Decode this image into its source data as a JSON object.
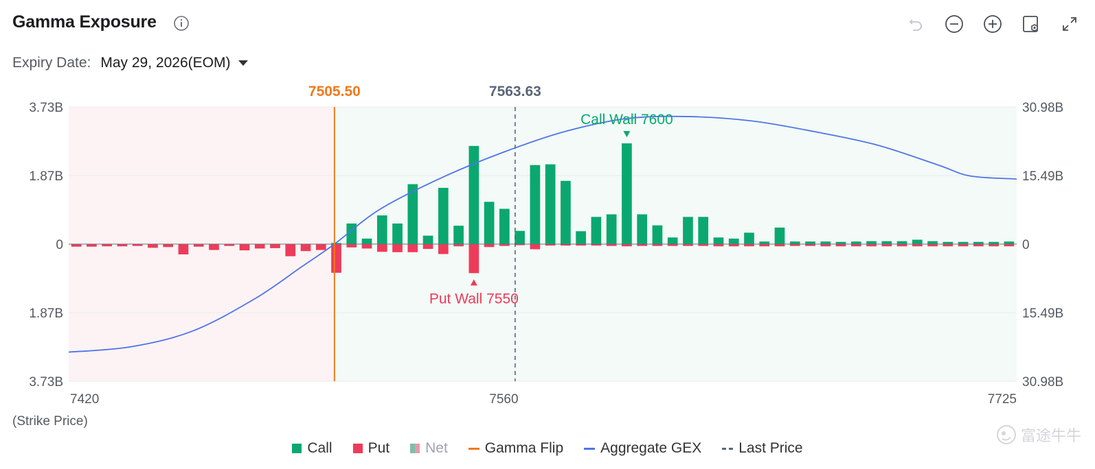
{
  "header": {
    "title": "Gamma Exposure",
    "expiry_label": "Expiry Date:",
    "expiry_value": "May 29, 2026(EOM)"
  },
  "toolbar": {
    "icons": [
      "undo-icon",
      "zoom-out-icon",
      "zoom-in-icon",
      "screenshot-settings-icon",
      "fullscreen-icon"
    ]
  },
  "legend": {
    "call": "Call",
    "put": "Put",
    "net": "Net",
    "gamma_flip": "Gamma Flip",
    "aggregate": "Aggregate GEX",
    "last_price": "Last Price"
  },
  "watermark": "富途牛牛",
  "colors": {
    "call": "#0aa870",
    "put": "#ee3b5a",
    "flip": "#f07a1b",
    "aggregate": "#4f74e8",
    "last_price": "#5b6678",
    "bg_negative": "#fdf3f4",
    "bg_positive": "#f3faf7"
  },
  "chart_data": {
    "type": "bar",
    "xlabel": "(Strike Price)",
    "x_tick_labels": [
      "7420",
      "7560",
      "7725"
    ],
    "left_axis_labels": [
      "3.73B",
      "1.87B",
      "0",
      "1.87B",
      "3.73B"
    ],
    "right_axis_labels": [
      "30.98B",
      "15.49B",
      "0",
      "15.49B",
      "30.98B"
    ],
    "ylim_left": [
      -3.73,
      3.73
    ],
    "ylim_right": [
      -30.98,
      30.98
    ],
    "x_domain": [
      7420,
      7725
    ],
    "gamma_flip": 7505.5,
    "gamma_flip_label": "7505.50",
    "last_price": 7563.63,
    "last_price_label": "7563.63",
    "call_wall": {
      "strike": 7600,
      "label": "Call Wall 7600"
    },
    "put_wall": {
      "strike": 7550,
      "label": "Put Wall 7550"
    },
    "strikes": [
      7420,
      7425,
      7430,
      7435,
      7440,
      7445,
      7450,
      7455,
      7460,
      7465,
      7470,
      7475,
      7480,
      7485,
      7490,
      7495,
      7500,
      7505,
      7510,
      7515,
      7520,
      7525,
      7530,
      7535,
      7540,
      7545,
      7550,
      7555,
      7560,
      7565,
      7570,
      7575,
      7580,
      7585,
      7590,
      7595,
      7600,
      7605,
      7610,
      7615,
      7620,
      7625,
      7630,
      7635,
      7640,
      7645,
      7650,
      7655,
      7660,
      7665,
      7670,
      7675,
      7680,
      7685,
      7690,
      7695,
      7700,
      7705,
      7710,
      7715,
      7720,
      7725
    ],
    "series": [
      {
        "name": "Call",
        "values": [
          0,
          0,
          0,
          0,
          0,
          0,
          0,
          0,
          0,
          0,
          0,
          0,
          0,
          0,
          0,
          0,
          0,
          0.03,
          0.56,
          0.15,
          0.78,
          0.56,
          1.63,
          0.23,
          1.53,
          0.5,
          2.67,
          1.15,
          0.96,
          0.36,
          2.15,
          2.17,
          1.72,
          0.35,
          0.74,
          0.81,
          2.74,
          0.81,
          0.51,
          0.18,
          0.74,
          0.74,
          0.18,
          0.15,
          0.31,
          0.07,
          0.45,
          0.07,
          0.07,
          0.07,
          0.06,
          0.07,
          0.08,
          0.08,
          0.08,
          0.12,
          0.08,
          0.06,
          0.06,
          0.06,
          0.06,
          0.07
        ]
      },
      {
        "name": "Put",
        "values": [
          -0.07,
          -0.07,
          -0.06,
          -0.06,
          -0.05,
          -0.1,
          -0.08,
          -0.28,
          -0.07,
          -0.16,
          -0.05,
          -0.17,
          -0.12,
          -0.11,
          -0.33,
          -0.19,
          -0.16,
          -0.78,
          -0.09,
          -0.12,
          -0.21,
          -0.22,
          -0.22,
          -0.13,
          -0.27,
          -0.06,
          -0.79,
          -0.08,
          -0.05,
          -0.03,
          -0.14,
          -0.04,
          -0.04,
          -0.04,
          -0.04,
          -0.05,
          -0.06,
          -0.05,
          -0.05,
          -0.05,
          -0.05,
          -0.05,
          -0.06,
          -0.06,
          -0.06,
          -0.06,
          -0.06,
          -0.05,
          -0.05,
          -0.06,
          -0.06,
          -0.06,
          -0.06,
          -0.06,
          -0.06,
          -0.06,
          -0.06,
          -0.06,
          -0.06,
          -0.06,
          -0.06,
          -0.06
        ]
      },
      {
        "name": "Aggregate GEX",
        "axis": "right",
        "x": [
          7420,
          7440,
          7460,
          7480,
          7495,
          7505.5,
          7520,
          7540,
          7560,
          7580,
          7600,
          7620,
          7640,
          7660,
          7680,
          7700,
          7710,
          7725
        ],
        "values": [
          -24.4,
          -23.2,
          -19.6,
          -12.3,
          -5.1,
          0,
          7.8,
          15.0,
          20.8,
          25.5,
          28.4,
          28.8,
          27.8,
          25.4,
          22.4,
          17.8,
          15.4,
          14.7
        ]
      }
    ]
  }
}
